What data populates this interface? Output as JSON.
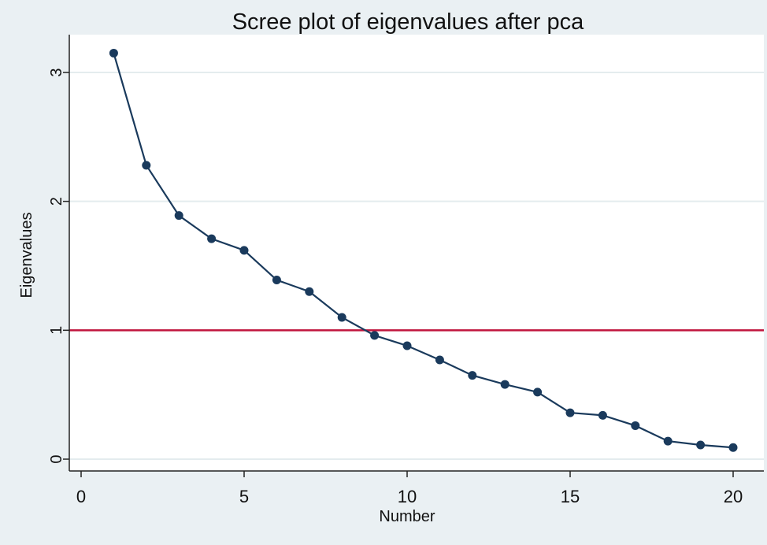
{
  "chart_data": {
    "type": "line",
    "title": "Scree plot of eigenvalues after pca",
    "xlabel": "Number",
    "ylabel": "Eigenvalues",
    "xlim": [
      0,
      20
    ],
    "ylim": [
      0,
      3
    ],
    "xticks": [
      0,
      5,
      10,
      15,
      20
    ],
    "yticks": [
      0,
      1,
      2,
      3
    ],
    "grid": "horizontal",
    "x": [
      1,
      2,
      3,
      4,
      5,
      6,
      7,
      8,
      9,
      10,
      11,
      12,
      13,
      14,
      15,
      16,
      17,
      18,
      19,
      20
    ],
    "values": [
      3.15,
      2.28,
      1.89,
      1.71,
      1.62,
      1.39,
      1.3,
      1.1,
      0.96,
      0.88,
      0.77,
      0.65,
      0.58,
      0.52,
      0.36,
      0.34,
      0.26,
      0.14,
      0.11,
      0.09
    ],
    "reference_line": {
      "y": 1,
      "color": "#c0143c"
    },
    "series_color": "#1a3a5c",
    "background": "#eaf0f3"
  }
}
